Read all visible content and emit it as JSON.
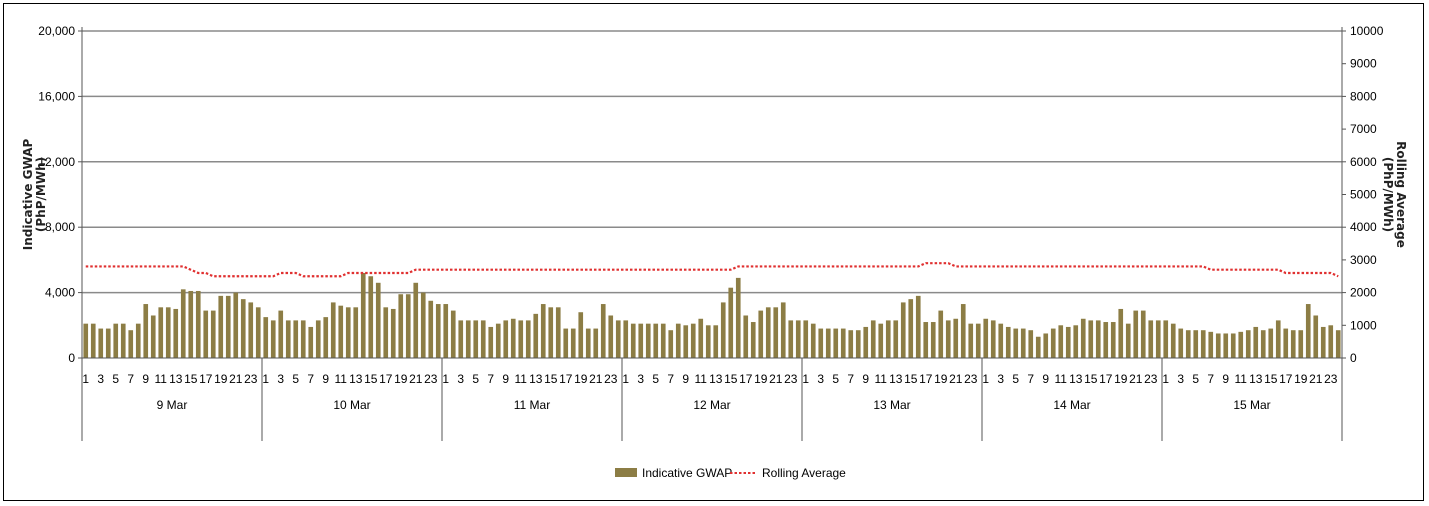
{
  "chart_data": {
    "type": "bar",
    "title": "",
    "ylabel": "Indicative GWAP (PhP/MWh)",
    "y2label": "Rolling Average (PhP/MWh)",
    "ylim": [
      0,
      20000
    ],
    "y2lim": [
      0,
      10000
    ],
    "yticks": [
      "0",
      "4,000",
      "8,000",
      "12,000",
      "16,000",
      "20,000"
    ],
    "y2ticks": [
      "0",
      "1000",
      "2000",
      "3000",
      "4000",
      "5000",
      "6000",
      "7000",
      "8000",
      "9000",
      "10000"
    ],
    "grid": true,
    "legend_position": "bottom",
    "hour_tick_labels": [
      "1",
      "3",
      "5",
      "7",
      "9",
      "11",
      "13",
      "15",
      "17",
      "19",
      "21",
      "23"
    ],
    "days": [
      "9 Mar",
      "10 Mar",
      "11 Mar",
      "12 Mar",
      "13 Mar",
      "14 Mar",
      "15 Mar"
    ],
    "series": [
      {
        "name": "Indicative GWAP",
        "axis": "left",
        "color": "#8c7d45",
        "values": [
          2100,
          2100,
          1800,
          1800,
          2100,
          2100,
          1700,
          2100,
          3300,
          2600,
          3100,
          3100,
          3000,
          4200,
          4100,
          4100,
          2900,
          2900,
          3800,
          3800,
          4000,
          3600,
          3400,
          3100,
          2500,
          2300,
          2900,
          2300,
          2300,
          2300,
          1900,
          2300,
          2500,
          3400,
          3200,
          3100,
          3100,
          5200,
          5000,
          4600,
          3100,
          3000,
          3900,
          3900,
          4600,
          4000,
          3500,
          3300,
          3300,
          2900,
          2300,
          2300,
          2300,
          2300,
          1900,
          2100,
          2300,
          2400,
          2300,
          2300,
          2700,
          3300,
          3100,
          3100,
          1800,
          1800,
          2800,
          1800,
          1800,
          3300,
          2600,
          2300,
          2300,
          2100,
          2100,
          2100,
          2100,
          2100,
          1700,
          2100,
          2000,
          2100,
          2400,
          2000,
          2000,
          3400,
          4300,
          4900,
          2600,
          2200,
          2900,
          3100,
          3100,
          3400,
          2300,
          2300,
          2300,
          2100,
          1800,
          1800,
          1800,
          1800,
          1700,
          1700,
          1900,
          2300,
          2100,
          2300,
          2300,
          3400,
          3600,
          3800,
          2200,
          2200,
          2900,
          2300,
          2400,
          3300,
          2100,
          2100,
          2400,
          2300,
          2100,
          1900,
          1800,
          1800,
          1700,
          1300,
          1500,
          1800,
          2000,
          1900,
          2000,
          2400,
          2300,
          2300,
          2200,
          2200,
          3000,
          2100,
          2900,
          2900,
          2300,
          2300,
          2300,
          2100,
          1800,
          1700,
          1700,
          1700,
          1600,
          1500,
          1500,
          1500,
          1600,
          1700,
          1900,
          1700,
          1800,
          2300,
          1800,
          1700,
          1700,
          3300,
          2600,
          1900,
          2000,
          1700
        ]
      },
      {
        "name": "Rolling Average",
        "axis": "right",
        "color": "#e03030",
        "style": "dotted",
        "values": [
          2800,
          2800,
          2800,
          2800,
          2800,
          2800,
          2800,
          2800,
          2800,
          2800,
          2800,
          2800,
          2800,
          2800,
          2700,
          2600,
          2600,
          2500,
          2500,
          2500,
          2500,
          2500,
          2500,
          2500,
          2500,
          2500,
          2600,
          2600,
          2600,
          2500,
          2500,
          2500,
          2500,
          2500,
          2500,
          2600,
          2600,
          2600,
          2600,
          2600,
          2600,
          2600,
          2600,
          2600,
          2700,
          2700,
          2700,
          2700,
          2700,
          2700,
          2700,
          2700,
          2700,
          2700,
          2700,
          2700,
          2700,
          2700,
          2700,
          2700,
          2700,
          2700,
          2700,
          2700,
          2700,
          2700,
          2700,
          2700,
          2700,
          2700,
          2700,
          2700,
          2700,
          2700,
          2700,
          2700,
          2700,
          2700,
          2700,
          2700,
          2700,
          2700,
          2700,
          2700,
          2700,
          2700,
          2700,
          2800,
          2800,
          2800,
          2800,
          2800,
          2800,
          2800,
          2800,
          2800,
          2800,
          2800,
          2800,
          2800,
          2800,
          2800,
          2800,
          2800,
          2800,
          2800,
          2800,
          2800,
          2800,
          2800,
          2800,
          2800,
          2900,
          2900,
          2900,
          2900,
          2800,
          2800,
          2800,
          2800,
          2800,
          2800,
          2800,
          2800,
          2800,
          2800,
          2800,
          2800,
          2800,
          2800,
          2800,
          2800,
          2800,
          2800,
          2800,
          2800,
          2800,
          2800,
          2800,
          2800,
          2800,
          2800,
          2800,
          2800,
          2800,
          2800,
          2800,
          2800,
          2800,
          2800,
          2700,
          2700,
          2700,
          2700,
          2700,
          2700,
          2700,
          2700,
          2700,
          2700,
          2600,
          2600,
          2600,
          2600,
          2600,
          2600,
          2600,
          2500
        ]
      }
    ],
    "legend": [
      {
        "label": "Indicative GWAP",
        "swatch": "bar",
        "color": "#8c7d45"
      },
      {
        "label": "Rolling Average",
        "swatch": "dotted-line",
        "color": "#e03030"
      }
    ]
  }
}
